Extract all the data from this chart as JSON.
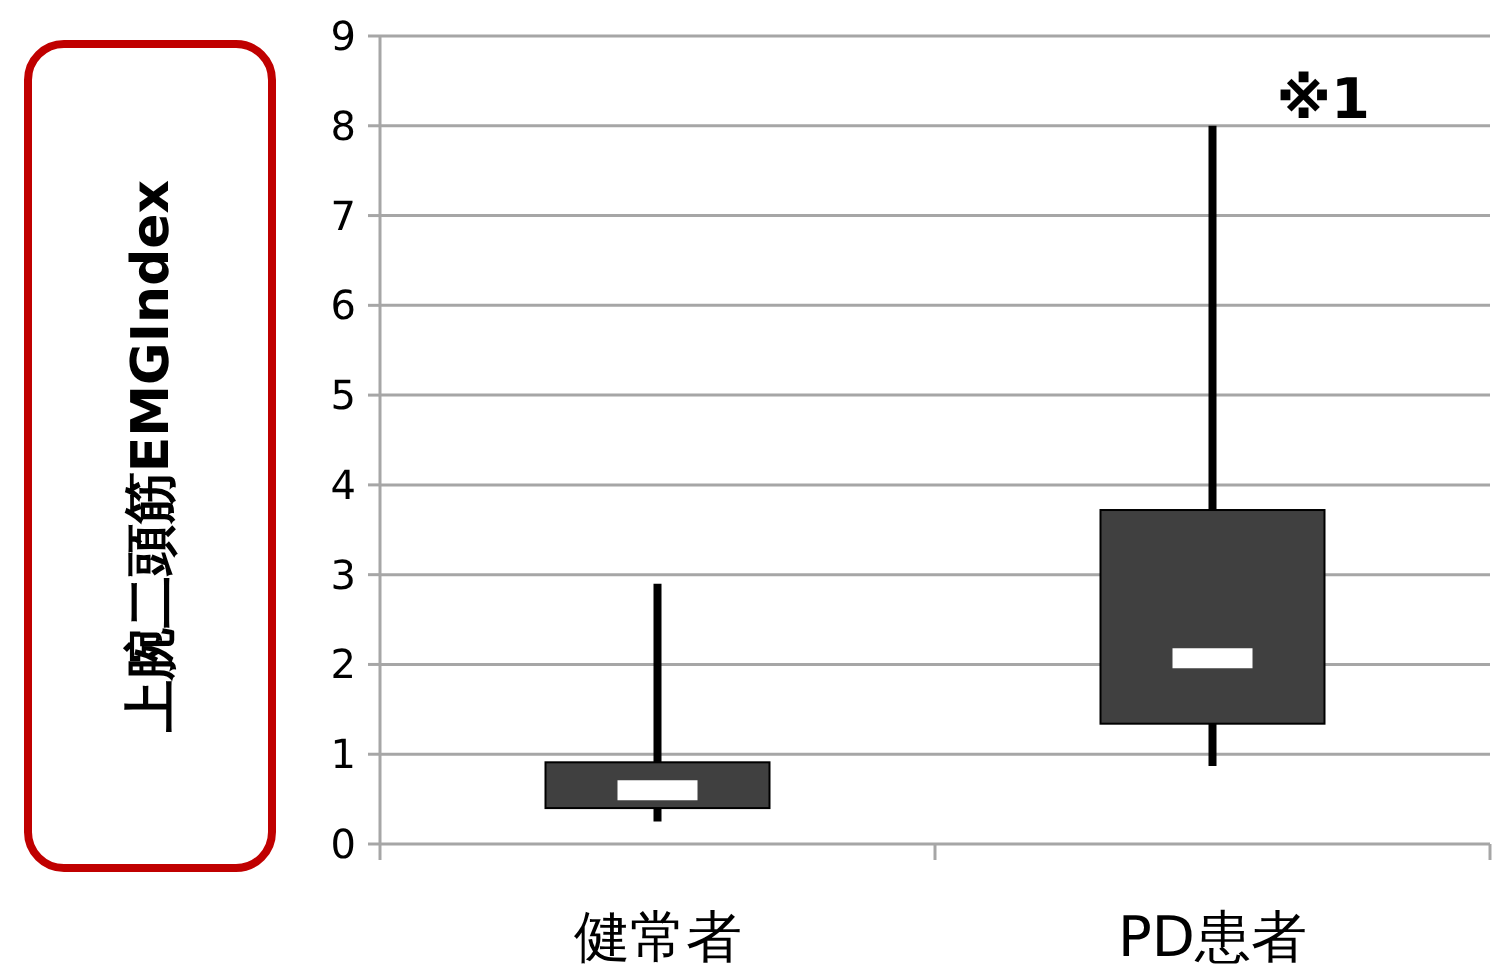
{
  "chart_data": {
    "type": "box",
    "categories": [
      "健常者",
      "PD患者"
    ],
    "ylabel": "上腕二頭筋EMGIndex",
    "ylim": [
      0,
      9
    ],
    "yticks": [
      0,
      1,
      2,
      3,
      4,
      5,
      6,
      7,
      8,
      9
    ],
    "grid": "y",
    "series": [
      {
        "color": "#404040",
        "boxes": [
          {
            "low": 0.25,
            "q1": 0.4,
            "median": 0.6,
            "q3": 0.91,
            "high": 2.9
          },
          {
            "low": 0.87,
            "q1": 1.34,
            "median": 2.07,
            "q3": 3.72,
            "high": 8.0
          }
        ]
      }
    ],
    "annotations": [
      {
        "text": "※1",
        "x": "PD患者",
        "y": 8
      }
    ]
  }
}
